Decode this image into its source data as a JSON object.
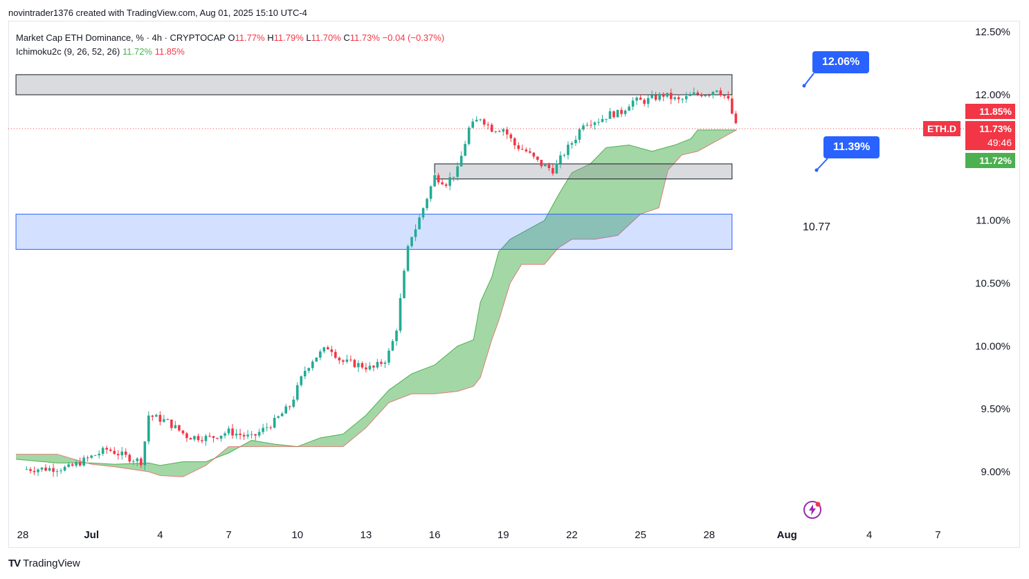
{
  "header": {
    "attribution": "novintrader1376 created with TradingView.com, Aug 01, 2025 15:10 UTC-4"
  },
  "legend": {
    "symbol_line": "Market Cap ETH Dominance, % · 4h · CRYPTOCAP",
    "o_label": "O",
    "o_value": "11.77%",
    "h_label": "H",
    "h_value": "11.79%",
    "l_label": "L",
    "l_value": "11.70%",
    "c_label": "C",
    "c_value": "11.73%",
    "change": "−0.04 (−0.37%)",
    "indicator_name": "Ichimoku2c (9, 26, 52, 26)",
    "indicator_v1": "11.72%",
    "indicator_v2": "11.85%"
  },
  "price_tags": {
    "symbol": "ETH.D",
    "span_b": "11.85%",
    "last": "11.73%",
    "countdown": "49:46",
    "span_a": "11.72%"
  },
  "annotations": {
    "callout_high": "12.06%",
    "callout_low": "11.39%",
    "zone_label": "10.77"
  },
  "footer": {
    "brand": "TradingView"
  },
  "colors": {
    "up": "#22ab94",
    "down": "#f23645",
    "cloud": "#81c784",
    "zone_blue": "#2962ff",
    "zone_gray": "#9598a1",
    "callout": "#2962ff"
  },
  "chart_data": {
    "type": "candlestick",
    "title": "Market Cap ETH Dominance, % · 4h · CRYPTOCAP",
    "y_axis": {
      "ticks": [
        "12.50%",
        "12.00%",
        "11.50%",
        "11.00%",
        "10.50%",
        "10.00%",
        "9.50%",
        "9.00%"
      ],
      "range": [
        8.9,
        12.5
      ]
    },
    "x_axis": {
      "ticks": [
        "28",
        "Jul",
        "4",
        "7",
        "10",
        "13",
        "16",
        "19",
        "22",
        "25",
        "28",
        "Aug",
        "4",
        "7"
      ]
    },
    "close_path": [
      [
        0,
        9.02
      ],
      [
        2,
        9.03
      ],
      [
        3,
        9.12
      ],
      [
        3.7,
        9.18
      ],
      [
        4.5,
        9.12
      ],
      [
        5.2,
        9.08
      ],
      [
        5.5,
        9.45
      ],
      [
        6.3,
        9.4
      ],
      [
        7.2,
        9.28
      ],
      [
        8.2,
        9.27
      ],
      [
        9.0,
        9.32
      ],
      [
        10.0,
        9.27
      ],
      [
        11.0,
        9.4
      ],
      [
        11.7,
        9.53
      ],
      [
        12.3,
        9.8
      ],
      [
        12.7,
        9.9
      ],
      [
        13.4,
        10.0
      ],
      [
        13.9,
        9.88
      ],
      [
        14.7,
        9.85
      ],
      [
        15.3,
        9.82
      ],
      [
        15.9,
        9.9
      ],
      [
        16.3,
        10.1
      ],
      [
        16.6,
        10.5
      ],
      [
        16.9,
        10.85
      ],
      [
        17.2,
        10.95
      ],
      [
        17.6,
        11.15
      ],
      [
        18.0,
        11.35
      ],
      [
        18.5,
        11.3
      ],
      [
        19.0,
        11.4
      ],
      [
        19.5,
        11.73
      ],
      [
        20.0,
        11.82
      ],
      [
        20.5,
        11.73
      ],
      [
        21.0,
        11.73
      ],
      [
        21.5,
        11.6
      ],
      [
        22.0,
        11.55
      ],
      [
        22.6,
        11.45
      ],
      [
        23.2,
        11.4
      ],
      [
        23.6,
        11.52
      ],
      [
        24.2,
        11.67
      ],
      [
        24.5,
        11.78
      ],
      [
        25.2,
        11.8
      ],
      [
        25.7,
        11.85
      ],
      [
        26.1,
        11.85
      ],
      [
        26.6,
        11.95
      ],
      [
        27.2,
        11.95
      ],
      [
        28.0,
        12.0
      ],
      [
        28.7,
        11.95
      ],
      [
        29.3,
        12.0
      ],
      [
        30.1,
        12.02
      ],
      [
        30.3,
        12.06
      ],
      [
        30.6,
        12.0
      ],
      [
        30.8,
        11.97
      ],
      [
        31.2,
        11.73
      ]
    ],
    "cloud_upper": [
      [
        -0.3,
        9.1
      ],
      [
        1.5,
        9.07
      ],
      [
        3.0,
        9.07
      ],
      [
        4.0,
        9.06
      ],
      [
        5.5,
        9.07
      ],
      [
        6.0,
        9.05
      ],
      [
        7.0,
        9.08
      ],
      [
        8.0,
        9.08
      ],
      [
        9.0,
        9.15
      ],
      [
        10.0,
        9.25
      ],
      [
        11.0,
        9.22
      ],
      [
        12.0,
        9.2
      ],
      [
        13.0,
        9.27
      ],
      [
        14.0,
        9.3
      ],
      [
        15.0,
        9.45
      ],
      [
        16.0,
        9.65
      ],
      [
        17.0,
        9.78
      ],
      [
        18.0,
        9.85
      ],
      [
        19.0,
        10.0
      ],
      [
        19.7,
        10.05
      ],
      [
        20.0,
        10.35
      ],
      [
        20.5,
        10.55
      ],
      [
        20.8,
        10.75
      ],
      [
        21.3,
        10.85
      ],
      [
        21.8,
        10.9
      ],
      [
        22.8,
        11.0
      ],
      [
        23.4,
        11.2
      ],
      [
        24.0,
        11.38
      ],
      [
        24.8,
        11.45
      ],
      [
        25.5,
        11.58
      ],
      [
        26.5,
        11.6
      ],
      [
        27.5,
        11.55
      ],
      [
        28.5,
        11.6
      ],
      [
        29.2,
        11.65
      ],
      [
        29.5,
        11.72
      ],
      [
        30.5,
        11.72
      ],
      [
        31.2,
        11.72
      ]
    ],
    "cloud_lower": [
      [
        -0.3,
        9.14
      ],
      [
        1.5,
        9.14
      ],
      [
        3.0,
        9.06
      ],
      [
        4.0,
        9.04
      ],
      [
        5.5,
        9.0
      ],
      [
        6.0,
        8.97
      ],
      [
        7.0,
        8.96
      ],
      [
        8.0,
        9.05
      ],
      [
        9.0,
        9.2
      ],
      [
        10.0,
        9.2
      ],
      [
        11.0,
        9.2
      ],
      [
        12.0,
        9.2
      ],
      [
        13.0,
        9.2
      ],
      [
        14.0,
        9.2
      ],
      [
        15.0,
        9.35
      ],
      [
        16.0,
        9.55
      ],
      [
        17.0,
        9.62
      ],
      [
        18.0,
        9.62
      ],
      [
        19.0,
        9.64
      ],
      [
        19.7,
        9.68
      ],
      [
        20.0,
        9.75
      ],
      [
        20.5,
        10.05
      ],
      [
        20.8,
        10.2
      ],
      [
        21.3,
        10.5
      ],
      [
        21.8,
        10.65
      ],
      [
        22.8,
        10.65
      ],
      [
        23.4,
        10.78
      ],
      [
        24.0,
        10.85
      ],
      [
        25.0,
        10.85
      ],
      [
        26.0,
        10.88
      ],
      [
        27.0,
        11.05
      ],
      [
        27.8,
        11.1
      ],
      [
        28.2,
        11.4
      ],
      [
        28.8,
        11.52
      ],
      [
        29.5,
        11.55
      ],
      [
        30.5,
        11.65
      ],
      [
        31.2,
        11.72
      ]
    ],
    "zones": [
      {
        "kind": "resistance",
        "from_day": -0.3,
        "to_day": 31.0,
        "low": 12.0,
        "high": 12.16
      },
      {
        "kind": "support",
        "from_day": 18.0,
        "to_day": 31.0,
        "low": 11.33,
        "high": 11.45
      },
      {
        "kind": "demand",
        "from_day": -0.3,
        "to_day": 31.0,
        "low": 10.77,
        "high": 11.05
      }
    ],
    "last_price": 11.73
  }
}
